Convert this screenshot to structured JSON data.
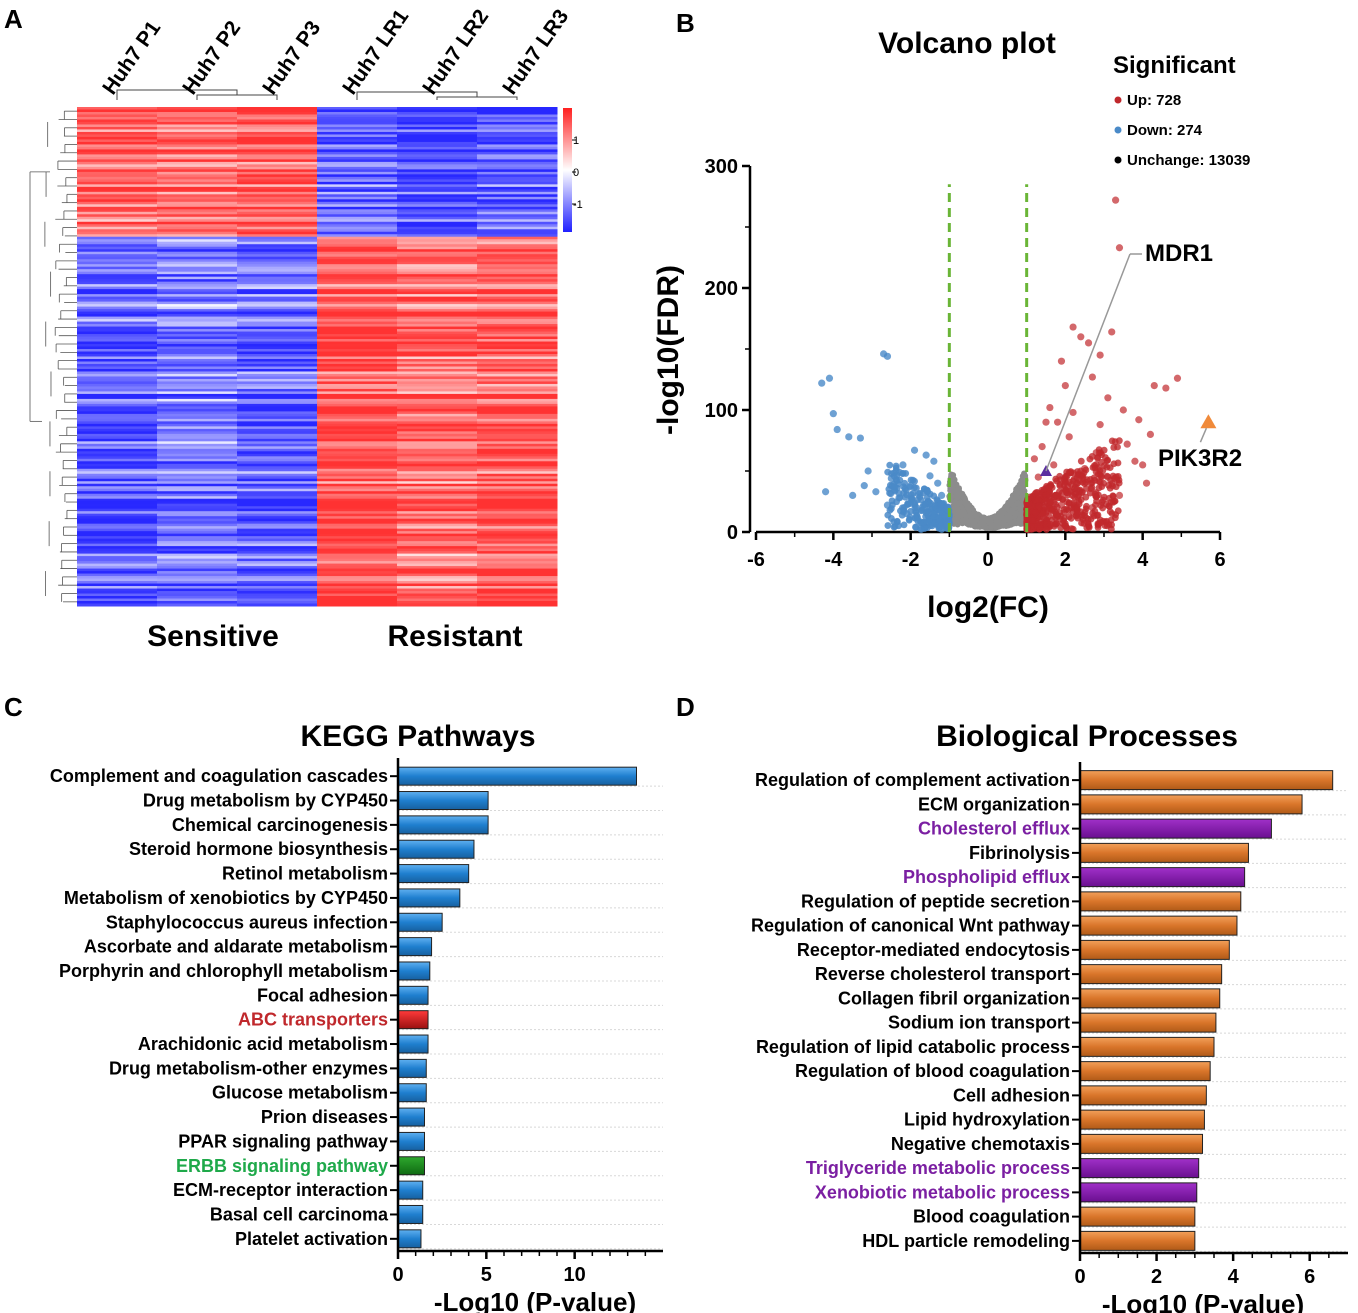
{
  "panels": {
    "A": "A",
    "B": "B",
    "C": "C",
    "D": "D"
  },
  "colors": {
    "up": "#c0282c",
    "down": "#4a8ac8",
    "unchange": "#8c8c8c",
    "threshold": "#6ab536",
    "kegg_bar": "#1f7fcf",
    "kegg_highlight_red": "#c0282c",
    "kegg_highlight_green": "#1fa94a",
    "bp_bar": "#d9752a",
    "bp_highlight": "#7b1fa2",
    "heat_high": "#ff3333",
    "heat_low": "#2a2aff",
    "heat_mid": "#ffffff"
  },
  "chart_data": [
    {
      "panel": "A",
      "type": "heatmap",
      "columns": [
        "Huh7 P1",
        "Huh7 P2",
        "Huh7 P3",
        "Huh7 LR1",
        "Huh7 LR2",
        "Huh7 LR3"
      ],
      "groups": [
        "Sensitive",
        "Resistant"
      ],
      "colorbar_ticks": [
        "1",
        "0",
        "-1"
      ],
      "clusters": [
        {
          "name": "up in sensitive",
          "rows_fraction": 0.26,
          "values": [
            0.75,
            0.72,
            0.78,
            -0.72,
            -0.9,
            -0.78
          ]
        },
        {
          "name": "up in resistant",
          "rows_fraction": 0.74,
          "values": [
            -0.75,
            -0.6,
            -0.7,
            0.85,
            0.7,
            0.78
          ]
        }
      ]
    },
    {
      "panel": "B",
      "type": "scatter",
      "title": "Volcano plot",
      "xlabel": "log2(FC)",
      "ylabel": "-log10(FDR)",
      "xlim": [
        -6,
        6
      ],
      "ylim": [
        0,
        300
      ],
      "xticks": [
        -6,
        -4,
        -2,
        0,
        2,
        4,
        6
      ],
      "yticks": [
        0,
        100,
        200,
        300
      ],
      "thresholds_x": [
        -1,
        1
      ],
      "legend": {
        "title": "Significant",
        "items": [
          "Up: 728",
          "Down: 274",
          "Unchange: 13039"
        ]
      },
      "counts": {
        "up": 728,
        "down": 274,
        "unchange": 13039
      },
      "down_points": [
        [
          -4.1,
          126
        ],
        [
          -4.3,
          122
        ],
        [
          -4.0,
          97
        ],
        [
          -3.9,
          84
        ],
        [
          -4.2,
          33
        ],
        [
          -3.6,
          78
        ],
        [
          -3.3,
          77
        ],
        [
          -2.7,
          146
        ],
        [
          -2.6,
          144
        ],
        [
          -3.1,
          50
        ],
        [
          -2.9,
          33
        ],
        [
          -2.5,
          44
        ],
        [
          -2.2,
          55
        ],
        [
          -1.9,
          67
        ],
        [
          -1.6,
          63
        ],
        [
          -1.4,
          58
        ],
        [
          -1.5,
          46
        ],
        [
          -2.0,
          38
        ],
        [
          -1.8,
          31
        ],
        [
          -2.3,
          28
        ],
        [
          -2.6,
          22
        ],
        [
          -3.2,
          38
        ],
        [
          -3.5,
          30
        ],
        [
          -1.3,
          40
        ],
        [
          -1.2,
          30
        ],
        [
          -1.7,
          20
        ],
        [
          -2.1,
          15
        ],
        [
          -1.4,
          12
        ]
      ],
      "up_points": [
        [
          3.3,
          272
        ],
        [
          3.4,
          233
        ],
        [
          2.2,
          168
        ],
        [
          2.4,
          160
        ],
        [
          3.2,
          164
        ],
        [
          2.9,
          145
        ],
        [
          2.6,
          155
        ],
        [
          1.9,
          140
        ],
        [
          2.7,
          127
        ],
        [
          1.6,
          102
        ],
        [
          2.0,
          120
        ],
        [
          3.1,
          110
        ],
        [
          3.5,
          100
        ],
        [
          4.6,
          118
        ],
        [
          4.9,
          126
        ],
        [
          4.2,
          80
        ],
        [
          3.8,
          58
        ],
        [
          3.1,
          45
        ],
        [
          2.5,
          52
        ],
        [
          2.1,
          78
        ],
        [
          1.8,
          90
        ],
        [
          1.4,
          70
        ],
        [
          1.2,
          60
        ],
        [
          2.9,
          88
        ],
        [
          3.6,
          72
        ],
        [
          4.0,
          55
        ],
        [
          4.1,
          40
        ],
        [
          3.4,
          30
        ],
        [
          2.7,
          20
        ],
        [
          1.9,
          22
        ],
        [
          1.5,
          30
        ],
        [
          1.3,
          45
        ],
        [
          2.3,
          35
        ],
        [
          1.7,
          55
        ],
        [
          2.8,
          65
        ],
        [
          3.9,
          92
        ],
        [
          4.3,
          120
        ],
        [
          2.2,
          98
        ],
        [
          1.5,
          90
        ]
      ],
      "annotations": [
        {
          "label": "MDR1",
          "x": 1.5,
          "y": 50,
          "marker": "triangle",
          "color": "#5b2fa0"
        },
        {
          "label": "PIK3R2",
          "x": 5.7,
          "y": 90,
          "marker": "triangle",
          "color": "#f08a3a"
        }
      ]
    },
    {
      "panel": "C",
      "type": "bar",
      "orientation": "horizontal",
      "title": "KEGG Pathways",
      "xlabel": "-Log10 (P-value)",
      "xlim": [
        0,
        15
      ],
      "xticks": [
        0,
        5,
        10
      ],
      "categories": [
        "Complement and coagulation cascades",
        "Drug metabolism by CYP450",
        "Chemical carcinogenesis",
        "Steroid hormone biosynthesis",
        "Retinol metabolism",
        "Metabolism of xenobiotics by CYP450",
        "Staphylococcus aureus infection",
        "Ascorbate and aldarate metabolism",
        "Porphyrin and chlorophyll metabolism",
        "Focal adhesion",
        "ABC transporters",
        "Arachidonic acid metabolism",
        "Drug metabolism-other enzymes",
        "Glucose metabolism",
        "Prion diseases",
        "PPAR signaling pathway",
        "ERBB signaling pathway",
        "ECM-receptor interaction",
        "Basal cell carcinoma",
        "Platelet activation"
      ],
      "values": [
        13.5,
        5.1,
        5.1,
        4.3,
        4.0,
        3.5,
        2.5,
        1.9,
        1.8,
        1.7,
        1.7,
        1.7,
        1.6,
        1.6,
        1.5,
        1.5,
        1.5,
        1.4,
        1.4,
        1.3
      ],
      "highlight": {
        "ABC transporters": "red",
        "ERBB signaling pathway": "green"
      }
    },
    {
      "panel": "D",
      "type": "bar",
      "orientation": "horizontal",
      "title": "Biological Processes",
      "xlabel": "-Log10 (P-value)",
      "xlim": [
        0,
        7
      ],
      "xticks": [
        0,
        2,
        4,
        6
      ],
      "categories": [
        "Regulation of complement activation",
        "ECM organization",
        "Cholesterol efflux",
        "Fibrinolysis",
        "Phospholipid efflux",
        "Regulation of peptide secretion",
        "Regulation of canonical Wnt pathway",
        "Receptor-mediated endocytosis",
        "Reverse cholesterol transport",
        "Collagen fibril organization",
        "Sodium ion transport",
        "Regulation of lipid catabolic process",
        "Regulation of blood coagulation",
        "Cell adhesion",
        "Lipid hydroxylation",
        "Negative chemotaxis",
        "Triglyceride metabolic process",
        "Xenobiotic metabolic process",
        "Blood coagulation",
        "HDL particle remodeling"
      ],
      "values": [
        6.6,
        5.8,
        5.0,
        4.4,
        4.3,
        4.2,
        4.1,
        3.9,
        3.7,
        3.65,
        3.55,
        3.5,
        3.4,
        3.3,
        3.25,
        3.2,
        3.1,
        3.05,
        3.0,
        3.0
      ],
      "highlight": {
        "Cholesterol efflux": "purple",
        "Phospholipid efflux": "purple",
        "Triglyceride metabolic process": "purple",
        "Xenobiotic metabolic process": "purple"
      }
    }
  ]
}
